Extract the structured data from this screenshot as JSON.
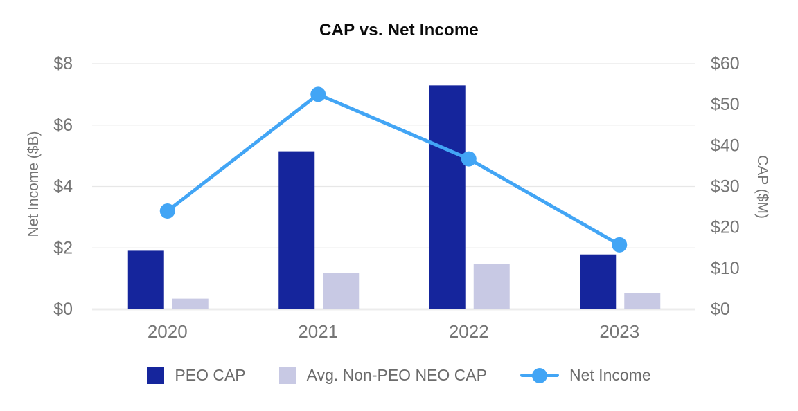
{
  "chart_data": {
    "type": "bar",
    "subtype": "grouped-bar-plus-line-dual-axis",
    "title": "CAP vs. Net Income",
    "categories": [
      "2020",
      "2021",
      "2022",
      "2023"
    ],
    "series": [
      {
        "name": "PEO CAP",
        "type": "bar",
        "axis": "right",
        "color": "#15259c",
        "values": [
          14.3,
          38.6,
          54.7,
          13.4
        ]
      },
      {
        "name": "Avg. Non-PEO NEO CAP",
        "type": "bar",
        "axis": "right",
        "color": "#c8c9e4",
        "values": [
          2.6,
          8.9,
          11.0,
          3.9
        ]
      },
      {
        "name": "Net Income",
        "type": "line",
        "axis": "left",
        "color": "#42a5f5",
        "values": [
          3.2,
          7.0,
          4.9,
          2.1
        ]
      }
    ],
    "left_axis": {
      "label": "Net Income ($B)",
      "min": 0,
      "max": 8,
      "tick_labels_top_to_bottom": [
        "$8",
        "$6",
        "$4",
        "$2",
        "$0"
      ]
    },
    "right_axis": {
      "label": "CAP ($M)",
      "min": 0,
      "max": 60,
      "tick_labels_top_to_bottom": [
        "$60",
        "$50",
        "$40",
        "$30",
        "$20",
        "$10",
        "$0"
      ]
    },
    "grid": true,
    "legend_position": "bottom",
    "colors": {
      "gridline": "#e7e7e7",
      "baseline": "#ececec",
      "tick_text": "#757575",
      "legend_text": "#6b6b6b",
      "title_text": "#0a0a0a"
    }
  }
}
